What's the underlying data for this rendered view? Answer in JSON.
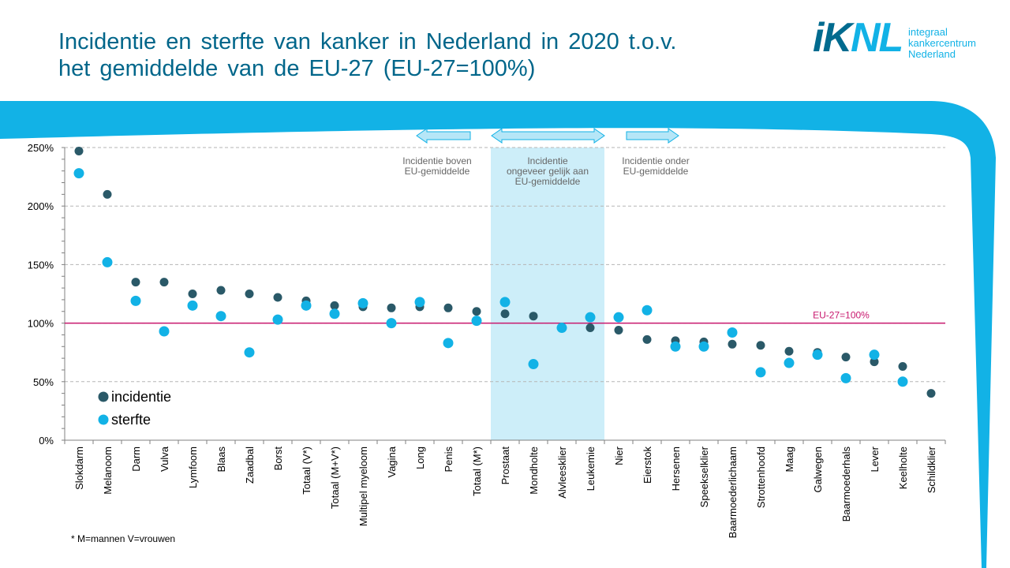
{
  "title_line1": "Incidentie en sterfte van kanker in Nederland in 2020 t.o.v.",
  "title_line2": "het gemiddelde van de EU-27 (EU-27=100%)",
  "logo": {
    "mark_k": "iK",
    "mark_nl": "NL",
    "line1": "integraal",
    "line2": "kankercentrum",
    "line3": "Nederland"
  },
  "colors": {
    "incidentie": "#2a5968",
    "sterfte": "#12b2e6",
    "reference_line": "#c8186e",
    "band": "#cdeef9",
    "brand": "#12b2e6",
    "title": "#00668a"
  },
  "annotations": {
    "left": [
      "Incidentie boven",
      "EU-gemiddelde"
    ],
    "middle": [
      "Incidentie",
      "ongeveer gelijk aan",
      "EU-gemiddelde"
    ],
    "right": [
      "Incidentie onder",
      "EU-gemiddelde"
    ]
  },
  "footnote": "* M=mannen V=vrouwen",
  "chart_data": {
    "type": "scatter",
    "title": "Incidentie en sterfte van kanker in Nederland in 2020 t.o.v. het gemiddelde van de EU-27 (EU-27=100%)",
    "xlabel": "",
    "ylabel": "",
    "ylim": [
      0,
      250
    ],
    "yticks": [
      0,
      50,
      100,
      150,
      200,
      250
    ],
    "ytick_labels": [
      "0%",
      "50%",
      "100%",
      "150%",
      "200%",
      "250%"
    ],
    "grid": "horizontal dashed",
    "legend_position": "bottom-left",
    "reference_line": {
      "value": 100,
      "label": "EU-27=100%"
    },
    "highlight_band": {
      "from_category": "Prostaat",
      "to_category": "Leukemie"
    },
    "categories": [
      "Slokdarm",
      "Melanoom",
      "Darm",
      "Vulva",
      "Lymfoom",
      "Blaas",
      "Zaadbal",
      "Borst",
      "Totaal (V*)",
      "Totaal (M+V*)",
      "Multipel myeloom",
      "Vagina",
      "Long",
      "Penis",
      "Totaal (M*)",
      "Prostaat",
      "Mondholte",
      "Alvleesklier",
      "Leukemie",
      "Nier",
      "Eierstok",
      "Hersenen",
      "Speekselklier",
      "Baarmoederlichaam",
      "Strottenhoofd",
      "Maag",
      "Galwegen",
      "Baarmoederhals",
      "Lever",
      "Keelholte",
      "Schildklier"
    ],
    "series": [
      {
        "name": "incidentie",
        "values": [
          247,
          210,
          135,
          135,
          125,
          128,
          125,
          122,
          119,
          115,
          114,
          113,
          114,
          113,
          110,
          108,
          106,
          96,
          96,
          94,
          86,
          85,
          84,
          82,
          81,
          76,
          75,
          71,
          67,
          63,
          40
        ]
      },
      {
        "name": "sterfte",
        "values": [
          228,
          152,
          119,
          93,
          115,
          106,
          75,
          103,
          115,
          108,
          117,
          100,
          118,
          83,
          102,
          118,
          65,
          96,
          105,
          105,
          111,
          80,
          80,
          92,
          58,
          66,
          73,
          53,
          73,
          50,
          null
        ]
      }
    ]
  }
}
